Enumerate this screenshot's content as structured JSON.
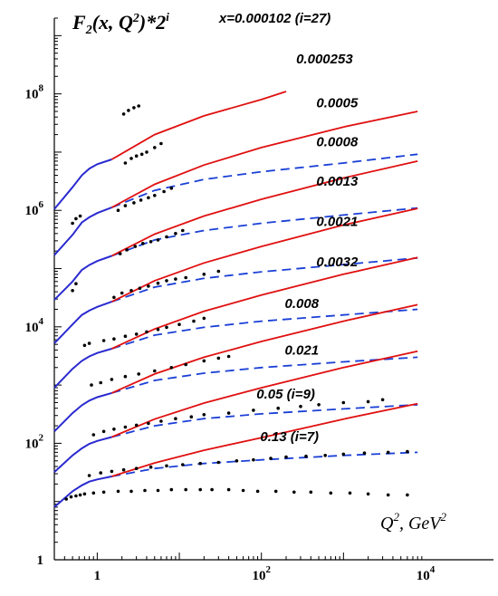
{
  "chart_data": {
    "type": "line",
    "title_main": "F",
    "title_sub": "2",
    "title_args": "(x, Q",
    "title_args_sup": "2",
    "title_tail": ")*2",
    "title_tail_sup": "i",
    "xlabel_main": "Q",
    "xlabel_sup": "2",
    "xlabel_unit": ", GeV",
    "xlabel_unit_sup": "2",
    "x_scale": "log",
    "y_scale": "log",
    "xlim": [
      0.3,
      10000
    ],
    "ylim": [
      1,
      2000000000
    ],
    "x_ticks": [
      {
        "value": 1,
        "base": "1",
        "exp": ""
      },
      {
        "value": 100,
        "base": "10",
        "exp": "2"
      },
      {
        "value": 10000,
        "base": "10",
        "exp": "4"
      }
    ],
    "y_ticks": [
      {
        "value": 1,
        "base": "1",
        "exp": ""
      },
      {
        "value": 100,
        "base": "10",
        "exp": "2"
      },
      {
        "value": 10000,
        "base": "10",
        "exp": "4"
      },
      {
        "value": 1000000,
        "base": "10",
        "exp": "6"
      },
      {
        "value": 100000000,
        "base": "10",
        "exp": "8"
      }
    ],
    "grid": false,
    "legend": "none",
    "colors": {
      "solid": "#e01010",
      "dashed": "#1a3fd6",
      "low_q": "#2a2ad0",
      "points": "#000000"
    },
    "series_labels": [
      {
        "text": "x=0.000102 (i=27)",
        "q2": 700,
        "f2": 2000000000
      },
      {
        "text": "0.000253",
        "q2": 1300,
        "f2": 400000000
      },
      {
        "text": "0.0005",
        "q2": 1500,
        "f2": 70000000
      },
      {
        "text": "0.0008",
        "q2": 1500,
        "f2": 15000000
      },
      {
        "text": "0.0013",
        "q2": 1500,
        "f2": 3200000
      },
      {
        "text": "0.0021",
        "q2": 1500,
        "f2": 650000
      },
      {
        "text": "0.0032",
        "q2": 1500,
        "f2": 130000
      },
      {
        "text": "0.008",
        "q2": 500,
        "f2": 25000
      },
      {
        "text": "0.021",
        "q2": 500,
        "f2": 4000
      },
      {
        "text": "0.05 (i=9)",
        "q2": 450,
        "f2": 700
      },
      {
        "text": "0.13 (i=7)",
        "q2": 500,
        "f2": 130
      }
    ],
    "curves": [
      {
        "low": [
          [
            0.3,
            1050000
          ],
          [
            0.5,
            2500000
          ],
          [
            0.65,
            4000000
          ],
          [
            0.8,
            5200000
          ],
          [
            1,
            6200000
          ],
          [
            1.5,
            7500000
          ]
        ],
        "solid": [
          [
            1.5,
            7500000
          ],
          [
            5,
            20000000
          ],
          [
            20,
            42000000
          ],
          [
            100,
            80000000
          ],
          [
            200,
            110000000
          ]
        ],
        "dashed": []
      },
      {
        "low": [
          [
            0.3,
            170000
          ],
          [
            0.5,
            380000
          ],
          [
            0.65,
            620000
          ],
          [
            0.8,
            760000
          ],
          [
            1,
            900000
          ],
          [
            1.5,
            1120000
          ]
        ],
        "solid": [
          [
            1.5,
            1120000
          ],
          [
            5,
            2800000
          ],
          [
            20,
            6000000
          ],
          [
            100,
            12000000
          ],
          [
            1000,
            27000000
          ],
          [
            8000,
            50000000
          ]
        ],
        "dashed": [
          [
            1.5,
            1120000
          ],
          [
            5,
            2200000
          ],
          [
            20,
            3400000
          ],
          [
            100,
            4600000
          ],
          [
            1000,
            6500000
          ],
          [
            8000,
            9200000
          ]
        ]
      },
      {
        "low": [
          [
            0.3,
            29000
          ],
          [
            0.5,
            60000
          ],
          [
            0.65,
            95000
          ],
          [
            0.8,
            115000
          ],
          [
            1,
            135000
          ],
          [
            1.5,
            165000
          ]
        ],
        "solid": [
          [
            1.5,
            165000
          ],
          [
            5,
            390000
          ],
          [
            20,
            800000
          ],
          [
            100,
            1550000
          ],
          [
            1000,
            3600000
          ],
          [
            8000,
            7000000
          ]
        ],
        "dashed": [
          [
            1.5,
            165000
          ],
          [
            5,
            310000
          ],
          [
            20,
            450000
          ],
          [
            100,
            600000
          ],
          [
            1000,
            830000
          ],
          [
            8000,
            1100000
          ]
        ]
      },
      {
        "low": [
          [
            0.3,
            5200
          ],
          [
            0.5,
            11000
          ],
          [
            0.65,
            16000
          ],
          [
            0.8,
            19000
          ],
          [
            1,
            22000
          ],
          [
            1.5,
            27000
          ]
        ],
        "solid": [
          [
            1.5,
            27000
          ],
          [
            5,
            62000
          ],
          [
            20,
            125000
          ],
          [
            100,
            240000
          ],
          [
            1000,
            560000
          ],
          [
            8000,
            1080000
          ]
        ],
        "dashed": [
          [
            1.5,
            27000
          ],
          [
            5,
            48000
          ],
          [
            20,
            68000
          ],
          [
            100,
            88000
          ],
          [
            1000,
            117000
          ],
          [
            8000,
            152000
          ]
        ]
      },
      {
        "low": [
          [
            0.3,
            900
          ],
          [
            0.5,
            1900
          ],
          [
            0.65,
            2600
          ],
          [
            0.8,
            3100
          ],
          [
            1,
            3550
          ],
          [
            1.5,
            4200
          ]
        ],
        "solid": [
          [
            1.5,
            4200
          ],
          [
            5,
            9200
          ],
          [
            20,
            18500
          ],
          [
            100,
            35000
          ],
          [
            1000,
            80000
          ],
          [
            8000,
            155000
          ]
        ],
        "dashed": [
          [
            1.5,
            4200
          ],
          [
            5,
            7200
          ],
          [
            20,
            9800
          ],
          [
            100,
            12500
          ],
          [
            1000,
            16000
          ],
          [
            8000,
            20000
          ]
        ]
      },
      {
        "low": [
          [
            0.3,
            160
          ],
          [
            0.5,
            330
          ],
          [
            0.65,
            450
          ],
          [
            0.8,
            540
          ],
          [
            1,
            620
          ],
          [
            1.5,
            730
          ]
        ],
        "solid": [
          [
            1.5,
            730
          ],
          [
            5,
            1550
          ],
          [
            20,
            3000
          ],
          [
            100,
            5600
          ],
          [
            1000,
            12500
          ],
          [
            8000,
            24000
          ]
        ],
        "dashed": [
          [
            1.5,
            730
          ],
          [
            5,
            1200
          ],
          [
            20,
            1600
          ],
          [
            100,
            2000
          ],
          [
            1000,
            2500
          ],
          [
            8000,
            3000
          ]
        ]
      },
      {
        "low": [
          [
            0.3,
            32
          ],
          [
            0.5,
            62
          ],
          [
            0.65,
            82
          ],
          [
            0.8,
            98
          ],
          [
            1,
            110
          ],
          [
            1.5,
            128
          ]
        ],
        "solid": [
          [
            1.5,
            128
          ],
          [
            5,
            260
          ],
          [
            20,
            490
          ],
          [
            100,
            900
          ],
          [
            1000,
            2000
          ],
          [
            8000,
            3800
          ]
        ],
        "dashed": [
          [
            1.5,
            128
          ],
          [
            5,
            200
          ],
          [
            20,
            265
          ],
          [
            100,
            320
          ],
          [
            1000,
            390
          ],
          [
            8000,
            460
          ]
        ]
      },
      {
        "low": [
          [
            0.3,
            8
          ],
          [
            0.5,
            15
          ],
          [
            0.65,
            19
          ],
          [
            0.8,
            22
          ],
          [
            1,
            24
          ],
          [
            1.5,
            27
          ]
        ],
        "solid": [
          [
            1.5,
            27
          ],
          [
            5,
            46
          ],
          [
            20,
            76
          ],
          [
            100,
            125
          ],
          [
            1000,
            260
          ],
          [
            8000,
            480
          ]
        ],
        "dashed": [
          [
            1.5,
            27
          ],
          [
            5,
            37
          ],
          [
            20,
            45
          ],
          [
            100,
            52
          ],
          [
            1000,
            62
          ],
          [
            8000,
            70
          ]
        ]
      }
    ],
    "points": [
      [
        2.1,
        45000000
      ],
      [
        2.4,
        52000000
      ],
      [
        2.8,
        58000000
      ],
      [
        3.2,
        62000000
      ],
      [
        2.2,
        6500000
      ],
      [
        2.6,
        7800000
      ],
      [
        3.0,
        8600000
      ],
      [
        3.5,
        9200000
      ],
      [
        4.0,
        10000000
      ],
      [
        5.0,
        12000000
      ],
      [
        6.0,
        14000000
      ],
      [
        1.8,
        1000000
      ],
      [
        2.2,
        1200000
      ],
      [
        2.8,
        1350000
      ],
      [
        3.4,
        1500000
      ],
      [
        4.2,
        1650000
      ],
      [
        5.0,
        1800000
      ],
      [
        6.5,
        2100000
      ],
      [
        8,
        2400000
      ],
      [
        1.9,
        180000
      ],
      [
        2.3,
        210000
      ],
      [
        2.9,
        240000
      ],
      [
        3.6,
        270000
      ],
      [
        4.5,
        290000
      ],
      [
        5.5,
        310000
      ],
      [
        7,
        350000
      ],
      [
        9,
        400000
      ],
      [
        11,
        450000
      ],
      [
        0.5,
        600000
      ],
      [
        0.55,
        720000
      ],
      [
        0.62,
        800000
      ],
      [
        1.6,
        32000
      ],
      [
        2.0,
        38000
      ],
      [
        2.6,
        42000
      ],
      [
        3.3,
        46000
      ],
      [
        4.2,
        50000
      ],
      [
        5.5,
        56000
      ],
      [
        7,
        62000
      ],
      [
        9,
        66000
      ],
      [
        12,
        70000
      ],
      [
        20,
        80000
      ],
      [
        30,
        90000
      ],
      [
        0.5,
        42000
      ],
      [
        0.55,
        55000
      ],
      [
        0.7,
        4800
      ],
      [
        0.8,
        5200
      ],
      [
        1.2,
        5800
      ],
      [
        1.6,
        6200
      ],
      [
        2.2,
        6900
      ],
      [
        3.0,
        7500
      ],
      [
        4.0,
        8200
      ],
      [
        5.5,
        9000
      ],
      [
        7,
        9800
      ],
      [
        10,
        11000
      ],
      [
        15,
        12500
      ],
      [
        20,
        14000
      ],
      [
        0.85,
        1000
      ],
      [
        1.1,
        1100
      ],
      [
        1.5,
        1250
      ],
      [
        2.2,
        1400
      ],
      [
        3.2,
        1550
      ],
      [
        5.0,
        1750
      ],
      [
        8,
        2000
      ],
      [
        12,
        2250
      ],
      [
        20,
        2600
      ],
      [
        30,
        2900
      ],
      [
        40,
        3100
      ],
      [
        0.9,
        140
      ],
      [
        1.2,
        160
      ],
      [
        1.6,
        175
      ],
      [
        2.2,
        190
      ],
      [
        3.0,
        205
      ],
      [
        4.2,
        220
      ],
      [
        6,
        240
      ],
      [
        9,
        265
      ],
      [
        14,
        285
      ],
      [
        20,
        310
      ],
      [
        40,
        330
      ],
      [
        80,
        370
      ],
      [
        160,
        400
      ],
      [
        300,
        430
      ],
      [
        500,
        460
      ],
      [
        1000,
        500
      ],
      [
        2000,
        520
      ],
      [
        3000,
        560
      ],
      [
        0.8,
        28
      ],
      [
        1.1,
        31
      ],
      [
        1.5,
        33
      ],
      [
        2.1,
        35
      ],
      [
        3.0,
        37
      ],
      [
        4.5,
        39
      ],
      [
        7,
        41
      ],
      [
        11,
        43
      ],
      [
        18,
        45
      ],
      [
        30,
        47
      ],
      [
        50,
        50
      ],
      [
        80,
        52
      ],
      [
        130,
        55
      ],
      [
        200,
        58
      ],
      [
        350,
        60
      ],
      [
        600,
        62
      ],
      [
        1000,
        65
      ],
      [
        1800,
        68
      ],
      [
        3500,
        70
      ],
      [
        6000,
        72
      ],
      [
        0.42,
        11
      ],
      [
        0.48,
        12
      ],
      [
        0.55,
        12.5
      ],
      [
        0.62,
        13
      ],
      [
        0.7,
        13.5
      ],
      [
        0.9,
        14
      ],
      [
        1.2,
        14.5
      ],
      [
        1.8,
        15
      ],
      [
        2.6,
        15
      ],
      [
        3.8,
        15.5
      ],
      [
        5.5,
        15.5
      ],
      [
        8,
        16
      ],
      [
        12,
        16
      ],
      [
        18,
        16
      ],
      [
        25,
        16
      ],
      [
        40,
        16
      ],
      [
        60,
        15.5
      ],
      [
        90,
        15
      ],
      [
        150,
        15
      ],
      [
        250,
        14.5
      ],
      [
        400,
        14.5
      ],
      [
        700,
        14
      ],
      [
        1200,
        14
      ],
      [
        2000,
        13.5
      ],
      [
        3500,
        13
      ],
      [
        6000,
        13
      ]
    ]
  }
}
